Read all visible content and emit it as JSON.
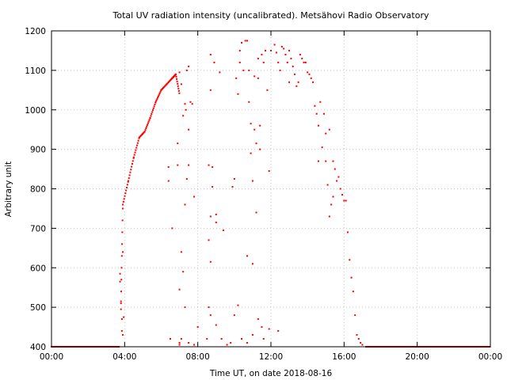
{
  "chart_data": {
    "type": "scatter",
    "title": "Total UV radiation intensity (uncalibrated). Metsähovi Radio Observatory",
    "xlabel": "Time UT, on date 2018-08-16",
    "ylabel": "Arbitrary unit",
    "x_unit": "hours UT",
    "xlim": [
      0,
      24
    ],
    "ylim": [
      400,
      1200
    ],
    "x_ticks": [
      0,
      4,
      8,
      12,
      16,
      20,
      24
    ],
    "x_tick_labels": [
      "00:00",
      "04:00",
      "08:00",
      "12:00",
      "16:00",
      "20:00",
      "00:00"
    ],
    "y_ticks": [
      400,
      500,
      600,
      700,
      800,
      900,
      1000,
      1100,
      1200
    ],
    "y_tick_labels": [
      "400",
      "500",
      "600",
      "700",
      "800",
      "900",
      "1000",
      "1100",
      "1200"
    ],
    "grid": true,
    "legend": "none",
    "marker_color": "#ff0000",
    "series": [
      {
        "values": {
          "baseline_zero": [
            [
              0,
              400
            ],
            [
              3.7,
              400
            ],
            [
              17.2,
              400
            ],
            [
              24,
              400
            ]
          ],
          "morning_envelope": [
            [
              3.8,
              510
            ],
            [
              3.9,
              760
            ],
            [
              4.2,
              820
            ],
            [
              4.5,
              880
            ],
            [
              4.8,
              930
            ],
            [
              5.1,
              945
            ],
            [
              5.4,
              980
            ],
            [
              5.7,
              1020
            ],
            [
              6.0,
              1050
            ],
            [
              6.3,
              1065
            ],
            [
              6.6,
              1080
            ],
            [
              6.8,
              1090
            ],
            [
              7.0,
              1040
            ]
          ],
          "scatter": [
            [
              3.75,
              585
            ],
            [
              3.75,
              565
            ],
            [
              3.8,
              515
            ],
            [
              3.8,
              495
            ],
            [
              3.85,
              470
            ],
            [
              3.85,
              440
            ],
            [
              3.9,
              640
            ],
            [
              3.9,
              430
            ],
            [
              3.95,
              475
            ],
            [
              6.4,
              855
            ],
            [
              6.4,
              820
            ],
            [
              6.6,
              700
            ],
            [
              6.9,
              915
            ],
            [
              6.9,
              860
            ],
            [
              7.0,
              1095
            ],
            [
              7.0,
              545
            ],
            [
              7.1,
              1065
            ],
            [
              7.1,
              640
            ],
            [
              7.2,
              985
            ],
            [
              7.3,
              1015
            ],
            [
              7.4,
              1100
            ],
            [
              7.5,
              1110
            ],
            [
              7.5,
              950
            ],
            [
              7.4,
              825
            ],
            [
              7.5,
              860
            ],
            [
              7.3,
              760
            ],
            [
              7.35,
              1000
            ],
            [
              7.2,
              590
            ],
            [
              7.3,
              500
            ],
            [
              7.1,
              420
            ],
            [
              7.0,
              410
            ],
            [
              7.6,
              1020
            ],
            [
              7.7,
              1015
            ],
            [
              7.8,
              780
            ],
            [
              8.0,
              450
            ],
            [
              8.6,
              860
            ],
            [
              8.6,
              670
            ],
            [
              8.7,
              730
            ],
            [
              8.7,
              615
            ],
            [
              8.7,
              1140
            ],
            [
              8.7,
              1050
            ],
            [
              8.8,
              855
            ],
            [
              8.8,
              805
            ],
            [
              8.9,
              1120
            ],
            [
              9.0,
              735
            ],
            [
              9.0,
              715
            ],
            [
              9.2,
              1095
            ],
            [
              9.4,
              695
            ],
            [
              9.9,
              805
            ],
            [
              10.0,
              825
            ],
            [
              10.1,
              1080
            ],
            [
              10.2,
              1040
            ],
            [
              10.3,
              1150
            ],
            [
              10.3,
              1120
            ],
            [
              10.4,
              1170
            ],
            [
              10.5,
              1100
            ],
            [
              10.6,
              1175
            ],
            [
              10.7,
              1175
            ],
            [
              10.7,
              630
            ],
            [
              10.8,
              1100
            ],
            [
              10.8,
              1020
            ],
            [
              10.9,
              965
            ],
            [
              10.9,
              890
            ],
            [
              11.0,
              820
            ],
            [
              11.0,
              610
            ],
            [
              11.1,
              1085
            ],
            [
              11.1,
              950
            ],
            [
              11.2,
              915
            ],
            [
              11.2,
              740
            ],
            [
              11.3,
              1130
            ],
            [
              11.3,
              1080
            ],
            [
              11.4,
              960
            ],
            [
              11.4,
              900
            ],
            [
              11.5,
              1140
            ],
            [
              11.6,
              1120
            ],
            [
              11.7,
              1150
            ],
            [
              11.8,
              1050
            ],
            [
              11.9,
              845
            ],
            [
              11.9,
              445
            ],
            [
              12.0,
              1150
            ],
            [
              12.2,
              1165
            ],
            [
              12.3,
              1145
            ],
            [
              12.4,
              1120
            ],
            [
              12.5,
              1100
            ],
            [
              12.6,
              1160
            ],
            [
              12.7,
              1155
            ],
            [
              12.8,
              1140
            ],
            [
              12.9,
              1120
            ],
            [
              13.0,
              1070
            ],
            [
              13.0,
              1150
            ],
            [
              13.1,
              1130
            ],
            [
              13.2,
              1110
            ],
            [
              13.3,
              1090
            ],
            [
              13.4,
              1060
            ],
            [
              13.5,
              1070
            ],
            [
              13.6,
              1140
            ],
            [
              13.7,
              1130
            ],
            [
              13.8,
              1120
            ],
            [
              13.9,
              1120
            ],
            [
              14.0,
              1095
            ],
            [
              14.1,
              1090
            ],
            [
              14.2,
              1080
            ],
            [
              14.3,
              1070
            ],
            [
              14.4,
              1010
            ],
            [
              14.5,
              990
            ],
            [
              14.6,
              960
            ],
            [
              14.6,
              870
            ],
            [
              14.7,
              1020
            ],
            [
              14.8,
              905
            ],
            [
              14.9,
              990
            ],
            [
              15.0,
              940
            ],
            [
              15.0,
              870
            ],
            [
              15.1,
              810
            ],
            [
              15.2,
              950
            ],
            [
              15.2,
              730
            ],
            [
              15.3,
              760
            ],
            [
              15.4,
              870
            ],
            [
              15.4,
              780
            ],
            [
              15.5,
              850
            ],
            [
              15.6,
              820
            ],
            [
              15.7,
              830
            ],
            [
              15.8,
              800
            ],
            [
              15.9,
              785
            ],
            [
              16.0,
              770
            ],
            [
              16.1,
              770
            ],
            [
              16.2,
              690
            ],
            [
              16.3,
              620
            ],
            [
              16.4,
              575
            ],
            [
              16.5,
              540
            ],
            [
              16.6,
              480
            ],
            [
              16.7,
              430
            ],
            [
              16.8,
              420
            ],
            [
              16.9,
              410
            ],
            [
              17.0,
              405
            ]
          ],
          "low_scatter": [
            [
              6.5,
              420
            ],
            [
              7.0,
              405
            ],
            [
              7.5,
              410
            ],
            [
              7.8,
              405
            ],
            [
              8.5,
              420
            ],
            [
              8.6,
              500
            ],
            [
              8.7,
              480
            ],
            [
              9.0,
              455
            ],
            [
              9.3,
              420
            ],
            [
              9.6,
              405
            ],
            [
              9.8,
              410
            ],
            [
              10.0,
              480
            ],
            [
              10.2,
              505
            ],
            [
              10.4,
              420
            ],
            [
              10.7,
              410
            ],
            [
              11.0,
              430
            ],
            [
              11.3,
              470
            ],
            [
              11.5,
              450
            ],
            [
              11.6,
              420
            ],
            [
              12.4,
              440
            ]
          ]
        }
      }
    ]
  }
}
